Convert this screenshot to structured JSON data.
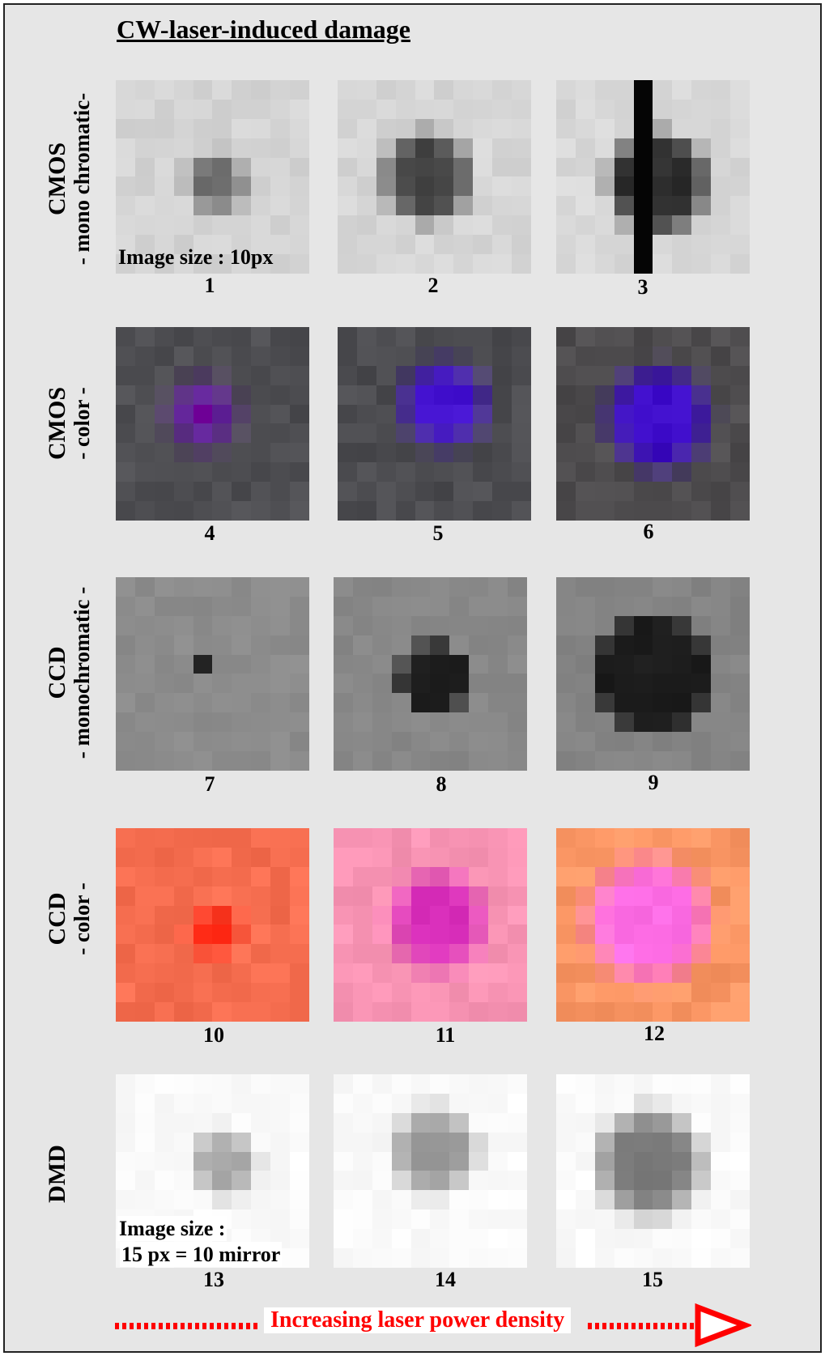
{
  "title": "CW-laser-induced damage",
  "rows": [
    {
      "line1": "CMOS",
      "line2": "- mono chromatic-"
    },
    {
      "line1": "CMOS",
      "line2": "- color -"
    },
    {
      "line1": "CCD",
      "line2": "- monochromatic -"
    },
    {
      "line1": "CCD",
      "line2": "- color -"
    },
    {
      "line1": "DMD",
      "line2": ""
    }
  ],
  "captions": [
    "1",
    "2",
    "3",
    "4",
    "5",
    "6",
    "7",
    "8",
    "9",
    "10",
    "11",
    "12",
    "13",
    "14",
    "15"
  ],
  "notes": {
    "image_size_1": "Image size : 10px",
    "image_size_2_line1": "Image size :",
    "image_size_2_line2": "15 px = 10 mirror"
  },
  "arrow_label": "Increasing laser power density",
  "colors": {
    "background": "#e6e6e6",
    "arrow": "#ff0000"
  }
}
